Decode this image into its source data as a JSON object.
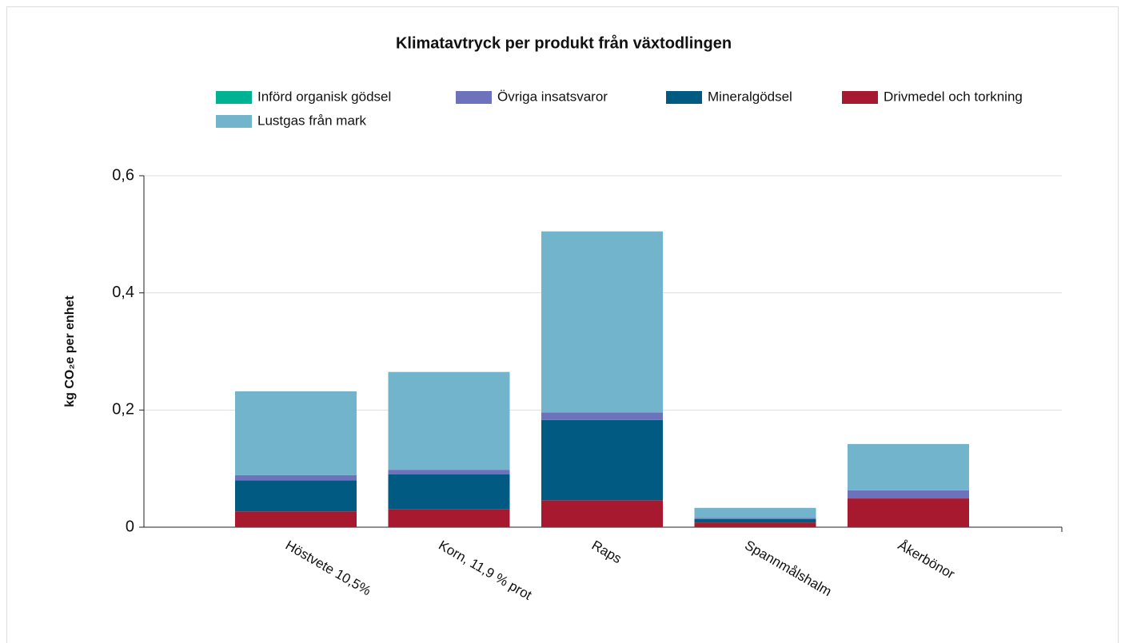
{
  "chart_data": {
    "type": "stacked_bar",
    "title": "Klimatavtryck per produkt från växtodlingen",
    "y_label": "kg CO₂e per enhet",
    "categories": [
      "Höstvete 10,5%",
      "Korn, 11,9 % prot",
      "Raps",
      "Spannmålshalm",
      "Åkerbönor"
    ],
    "series": [
      {
        "name": "Drivmedel och torkning",
        "color": "#a6192e",
        "values": [
          0.027,
          0.031,
          0.046,
          0.008,
          0.049
        ]
      },
      {
        "name": "Mineralgödsel",
        "color": "#005a82",
        "values": [
          0.053,
          0.059,
          0.137,
          0.006,
          0
        ]
      },
      {
        "name": "Övriga insatsvaror",
        "color": "#6c72bb",
        "values": [
          0.009,
          0.008,
          0.013,
          0.002,
          0.014
        ]
      },
      {
        "name": "Införd organisk gödsel",
        "color": "#00b294",
        "values": [
          0,
          0,
          0,
          0,
          0
        ]
      },
      {
        "name": "Lustgas från mark",
        "color": "#72b4cc",
        "values": [
          0.143,
          0.167,
          0.309,
          0.017,
          0.079
        ]
      }
    ],
    "ylim": [
      0,
      0.6
    ],
    "yticks": [
      0,
      {
        "value": 0.2,
        "label": "0,2"
      },
      {
        "value": 0.4,
        "label": "0,4"
      },
      {
        "value": 0.6,
        "label": "0,6"
      }
    ],
    "grid": true
  }
}
